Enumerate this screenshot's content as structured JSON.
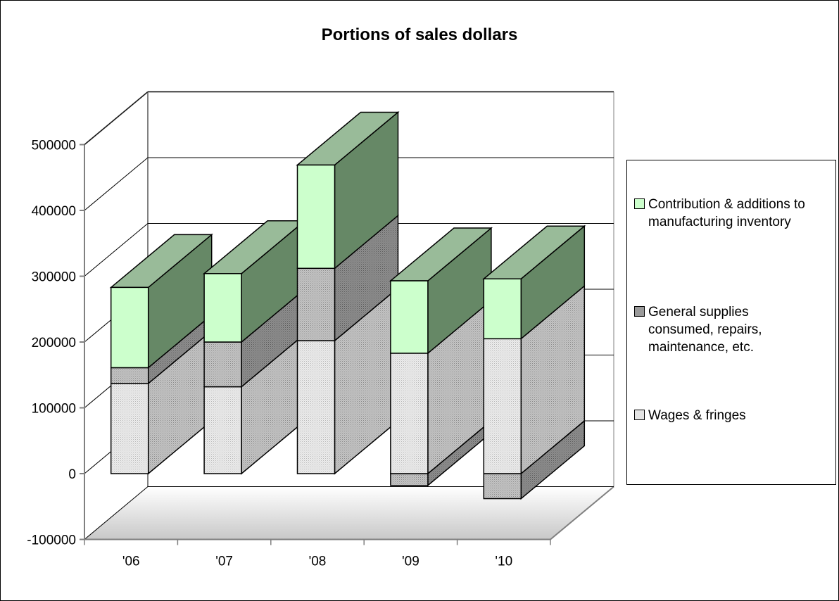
{
  "chart_data": {
    "type": "bar",
    "stacked": true,
    "three_d": true,
    "title": "Portions of sales dollars",
    "xlabel": "",
    "ylabel": "",
    "categories": [
      "'06",
      "'07",
      "'08",
      "'09",
      "'10"
    ],
    "ylim": [
      -100000,
      500000
    ],
    "yticks": [
      -100000,
      0,
      100000,
      200000,
      300000,
      400000,
      500000
    ],
    "grid": true,
    "legend_position": "right",
    "series": [
      {
        "name": "Wages & fringes",
        "values": [
          137000,
          132000,
          202000,
          183000,
          205000
        ],
        "color": "#e4e4e4"
      },
      {
        "name": "General supplies consumed, repairs, maintenance, etc.",
        "values": [
          24000,
          68000,
          110000,
          -18000,
          -38000
        ],
        "color": "#9a9a9a"
      },
      {
        "name": "Contribution & additions to manufacturing inventory",
        "values": [
          122000,
          104000,
          157000,
          110000,
          91000
        ],
        "color": "#ccffcc"
      }
    ]
  },
  "legend": {
    "items": [
      {
        "label_lines": [
          "Contribution & additions to",
          "manufacturing inventory"
        ],
        "color": "#ccffcc"
      },
      {
        "label_lines": [
          "General supplies",
          "consumed, repairs,",
          "maintenance, etc."
        ],
        "color": "#9a9a9a"
      },
      {
        "label_lines": [
          "Wages & fringes"
        ],
        "color": "#e4e4e4"
      }
    ]
  }
}
